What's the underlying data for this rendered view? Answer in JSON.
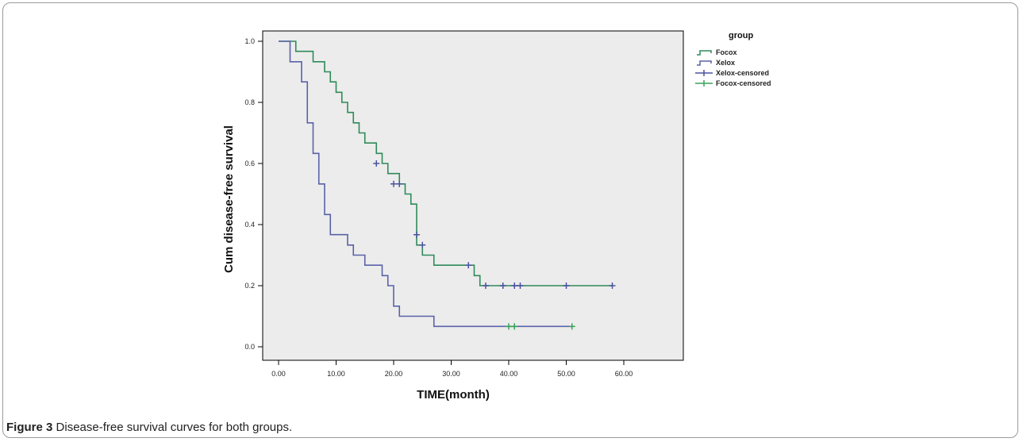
{
  "chart_data": {
    "type": "line",
    "xlabel": "TIME(month)",
    "ylabel": "Cum disease-free survival",
    "xlim": [
      0,
      60
    ],
    "ylim": [
      0,
      1
    ],
    "x_ticks": [
      "0.00",
      "10.00",
      "20.00",
      "30.00",
      "40.00",
      "50.00",
      "60.00"
    ],
    "y_ticks": [
      "0.0",
      "0.2",
      "0.4",
      "0.6",
      "0.8",
      "1.0"
    ],
    "grid": false,
    "legend_placement": "top-right outside",
    "legend_title": "group",
    "legend_entries": [
      "Focox",
      "Xelox",
      "Xelox-censored",
      "Focox-censored"
    ],
    "series": [
      {
        "name": "Focox",
        "color": "#2f8a5a",
        "steps": [
          [
            0,
            1.0
          ],
          [
            3,
            0.967
          ],
          [
            6,
            0.933
          ],
          [
            8,
            0.9
          ],
          [
            9,
            0.867
          ],
          [
            10,
            0.833
          ],
          [
            11,
            0.8
          ],
          [
            12,
            0.767
          ],
          [
            13,
            0.733
          ],
          [
            14,
            0.7
          ],
          [
            15,
            0.667
          ],
          [
            17,
            0.633
          ],
          [
            18,
            0.6
          ],
          [
            19,
            0.567
          ],
          [
            21,
            0.533
          ],
          [
            22,
            0.5
          ],
          [
            23,
            0.467
          ],
          [
            24,
            0.333
          ],
          [
            25,
            0.3
          ],
          [
            27,
            0.267
          ],
          [
            34,
            0.233
          ],
          [
            35,
            0.2
          ]
        ],
        "end_x": 58,
        "censored": [
          [
            17,
            0.6
          ],
          [
            20,
            0.533
          ],
          [
            21,
            0.533
          ],
          [
            24,
            0.367
          ],
          [
            25,
            0.333
          ],
          [
            33,
            0.267
          ],
          [
            36,
            0.2
          ],
          [
            39,
            0.2
          ],
          [
            41,
            0.2
          ],
          [
            42,
            0.2
          ],
          [
            50,
            0.2
          ],
          [
            58,
            0.2
          ]
        ]
      },
      {
        "name": "Xelox",
        "color": "#5a62a8",
        "steps": [
          [
            0,
            1.0
          ],
          [
            2,
            0.933
          ],
          [
            4,
            0.867
          ],
          [
            5,
            0.733
          ],
          [
            6,
            0.633
          ],
          [
            7,
            0.533
          ],
          [
            8,
            0.433
          ],
          [
            9,
            0.367
          ],
          [
            12,
            0.333
          ],
          [
            13,
            0.3
          ],
          [
            15,
            0.267
          ],
          [
            18,
            0.233
          ],
          [
            19,
            0.2
          ],
          [
            20,
            0.133
          ],
          [
            21,
            0.1
          ],
          [
            27,
            0.0667
          ]
        ],
        "end_x": 51,
        "censored": [
          [
            40,
            0.0667
          ],
          [
            41,
            0.0667
          ],
          [
            51,
            0.0667
          ]
        ]
      }
    ]
  },
  "caption": {
    "label": "Figure 3",
    "text": " Disease-free survival curves for both groups."
  }
}
